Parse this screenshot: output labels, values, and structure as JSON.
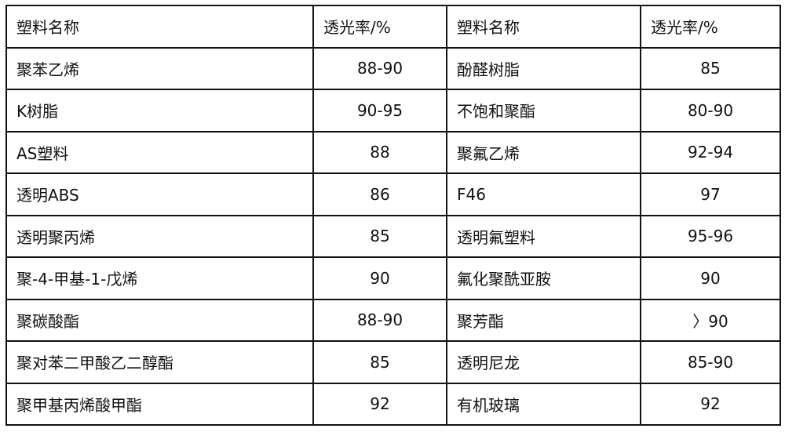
{
  "header": [
    "塑料名称",
    "透光率/%",
    "塑料名称",
    "透光率/%"
  ],
  "rows": [
    [
      "聚苯乙烯",
      "88-90",
      "酚醛树脂",
      "85"
    ],
    [
      "K树脂",
      "90-95",
      "不饱和聚酯",
      "80-90"
    ],
    [
      "AS塑料",
      "88",
      "聚氟乙烯",
      "92-94"
    ],
    [
      "透明ABS",
      "86",
      "F46",
      "97"
    ],
    [
      "透明聚丙烯",
      "85",
      "透明氟塑料",
      "95-96"
    ],
    [
      "聚-4-甲基-1-戊烯",
      "90",
      "氟化聚酰亚胺",
      "90"
    ],
    [
      "聚碳酸酯",
      "88-90",
      "聚芳酯",
      "〉90"
    ],
    [
      "聚对苯二甲酸乙二醇酯",
      "85",
      "透明尼龙",
      "85-90"
    ],
    [
      "聚甲基丙烯酸甲酯",
      "92",
      "有机玻璃",
      "92"
    ]
  ]
}
